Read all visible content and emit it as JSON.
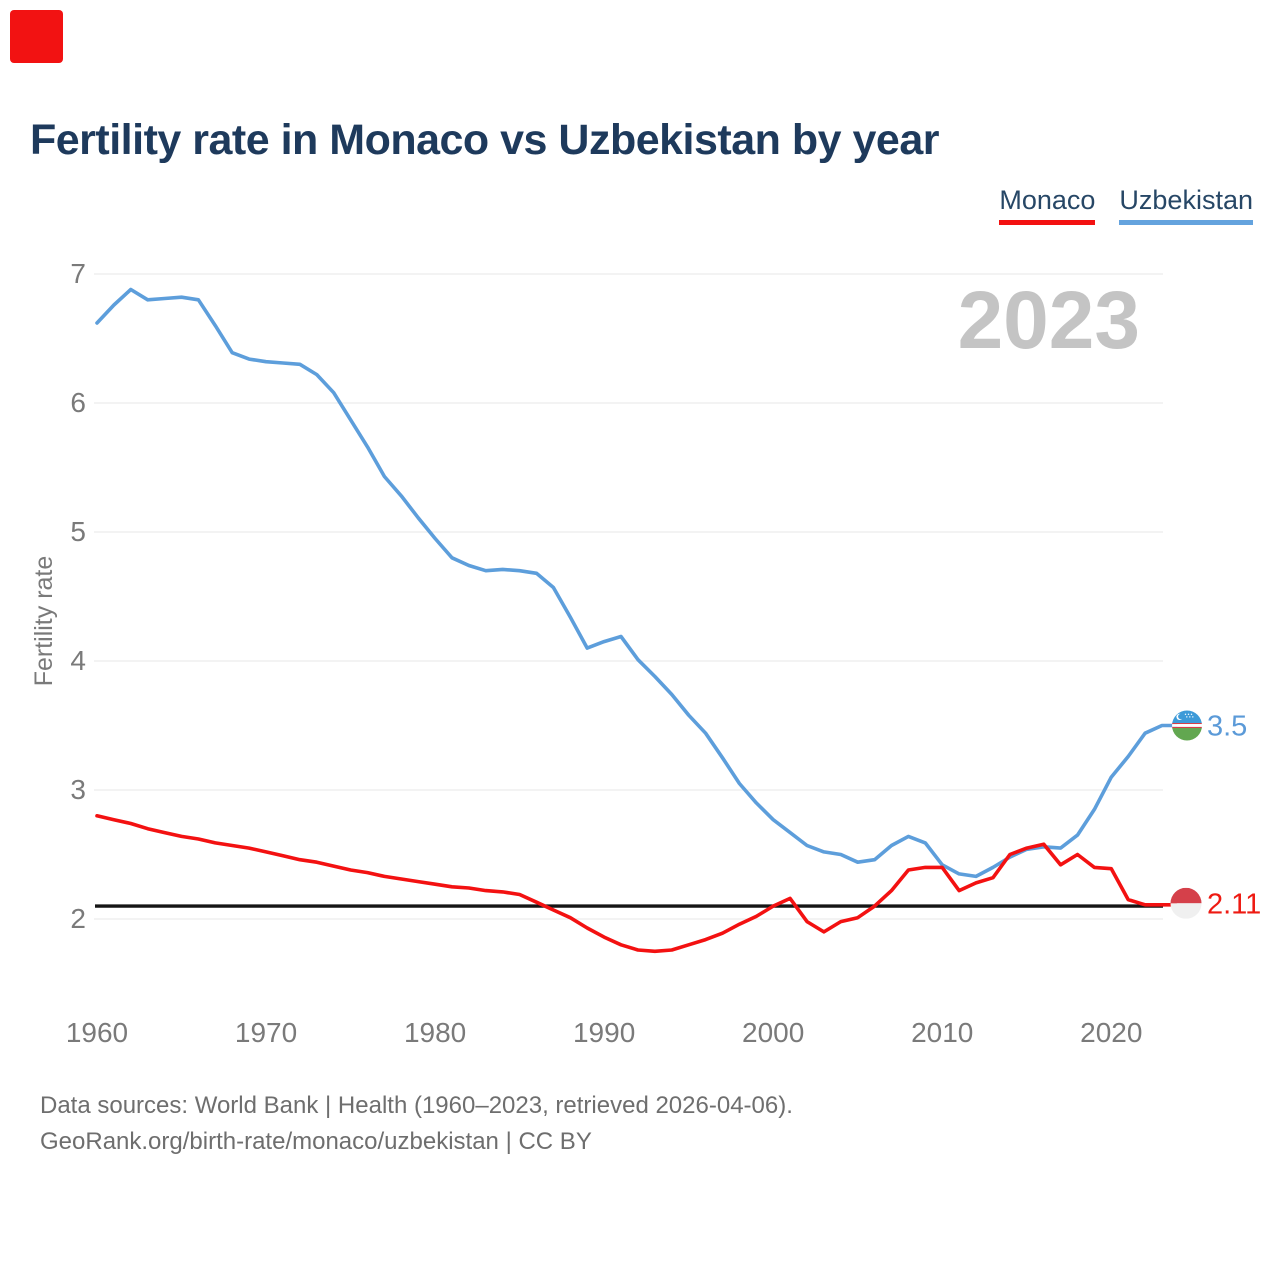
{
  "marker": {
    "color": "#f21212"
  },
  "header": {
    "title": "Fertility rate in Monaco vs Uzbekistan by year"
  },
  "legend": [
    {
      "label": "Monaco",
      "color": "#f31111"
    },
    {
      "label": "Uzbekistan",
      "color": "#64a3de"
    }
  ],
  "chart_data": {
    "type": "line",
    "title": "Fertility rate in Monaco vs Uzbekistan by year",
    "ylabel": "Fertility rate",
    "xlabel": "",
    "watermark": "2023",
    "grid": true,
    "legend_position": "top-right",
    "xlim": [
      1960,
      2023
    ],
    "ylim": [
      1.6,
      7.1
    ],
    "yticks": [
      2,
      3,
      4,
      5,
      6,
      7
    ],
    "xticks": [
      1960,
      1970,
      1980,
      1990,
      2000,
      2010,
      2020
    ],
    "reference_line": 2.1,
    "x": [
      1960,
      1961,
      1962,
      1963,
      1964,
      1965,
      1966,
      1967,
      1968,
      1969,
      1970,
      1971,
      1972,
      1973,
      1974,
      1975,
      1976,
      1977,
      1978,
      1979,
      1980,
      1981,
      1982,
      1983,
      1984,
      1985,
      1986,
      1987,
      1988,
      1989,
      1990,
      1991,
      1992,
      1993,
      1994,
      1995,
      1996,
      1997,
      1998,
      1999,
      2000,
      2001,
      2002,
      2003,
      2004,
      2005,
      2006,
      2007,
      2008,
      2009,
      2010,
      2011,
      2012,
      2013,
      2014,
      2015,
      2016,
      2017,
      2018,
      2019,
      2020,
      2021,
      2022,
      2023
    ],
    "series": [
      {
        "name": "Uzbekistan",
        "color": "#5d9edb",
        "values": [
          6.62,
          6.76,
          6.88,
          6.8,
          6.81,
          6.82,
          6.8,
          6.6,
          6.39,
          6.34,
          6.32,
          6.31,
          6.3,
          6.22,
          6.08,
          5.87,
          5.66,
          5.43,
          5.28,
          5.11,
          4.95,
          4.8,
          4.74,
          4.7,
          4.71,
          4.7,
          4.68,
          4.57,
          4.34,
          4.1,
          4.15,
          4.19,
          4.01,
          3.88,
          3.74,
          3.58,
          3.44,
          3.25,
          3.05,
          2.9,
          2.77,
          2.67,
          2.57,
          2.52,
          2.5,
          2.44,
          2.46,
          2.57,
          2.64,
          2.59,
          2.42,
          2.35,
          2.33,
          2.4,
          2.48,
          2.54,
          2.56,
          2.55,
          2.65,
          2.85,
          3.1,
          3.26,
          3.44,
          3.5
        ]
      },
      {
        "name": "Monaco",
        "color": "#f31111",
        "values": [
          2.8,
          2.77,
          2.74,
          2.7,
          2.67,
          2.64,
          2.62,
          2.59,
          2.57,
          2.55,
          2.52,
          2.49,
          2.46,
          2.44,
          2.41,
          2.38,
          2.36,
          2.33,
          2.31,
          2.29,
          2.27,
          2.25,
          2.24,
          2.22,
          2.21,
          2.19,
          2.13,
          2.07,
          2.01,
          1.93,
          1.86,
          1.8,
          1.76,
          1.75,
          1.76,
          1.8,
          1.84,
          1.89,
          1.96,
          2.02,
          2.1,
          2.16,
          1.98,
          1.9,
          1.98,
          2.01,
          2.1,
          2.22,
          2.38,
          2.4,
          2.4,
          2.22,
          2.28,
          2.32,
          2.5,
          2.55,
          2.58,
          2.42,
          2.5,
          2.4,
          2.39,
          2.15,
          2.11,
          2.11
        ]
      }
    ],
    "end_labels": {
      "Uzbekistan": "3.5",
      "Monaco": "2.11"
    }
  },
  "footer": {
    "line1": "Data sources: World Bank | Health (1960–2023, retrieved 2026-04-06).",
    "line2": "GeoRank.org/birth-rate/monaco/uzbekistan | CC BY"
  }
}
